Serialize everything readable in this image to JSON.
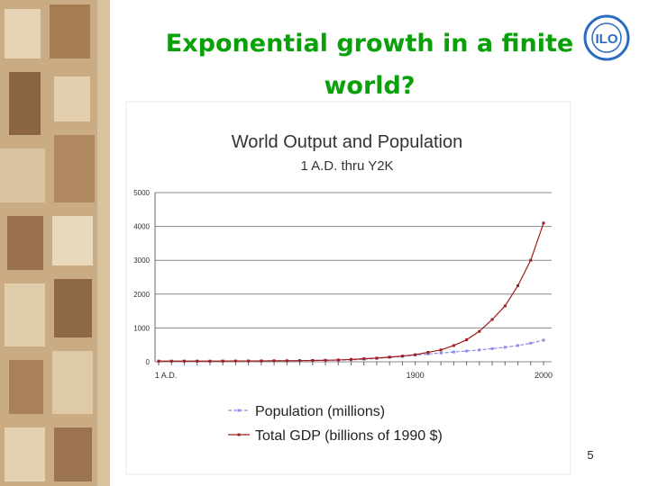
{
  "slide": {
    "title_lines": [
      "Exponential growth in a finite",
      "world?"
    ],
    "page_number": 5
  },
  "chart_data": {
    "type": "line",
    "title": "World Output and Population",
    "subtitle": "1 A.D. thru Y2K",
    "categories": [
      "1 A.D.",
      null,
      null,
      null,
      null,
      null,
      null,
      null,
      null,
      null,
      null,
      null,
      null,
      null,
      null,
      null,
      null,
      null,
      null,
      null,
      "1900",
      null,
      null,
      null,
      null,
      null,
      null,
      null,
      null,
      null,
      "2000"
    ],
    "series": [
      {
        "name": "Population (millions)",
        "color": "#8c8ce6",
        "values": [
          20,
          20,
          20,
          20,
          20,
          25,
          25,
          25,
          30,
          30,
          30,
          35,
          40,
          45,
          50,
          60,
          75,
          100,
          130,
          160,
          200,
          230,
          260,
          290,
          320,
          350,
          390,
          430,
          480,
          550,
          640
        ]
      },
      {
        "name": "Total GDP (billions of 1990 $)",
        "color": "#a01e1e",
        "values": [
          20,
          20,
          20,
          20,
          20,
          20,
          25,
          25,
          25,
          30,
          30,
          35,
          40,
          45,
          55,
          70,
          90,
          110,
          140,
          170,
          210,
          280,
          350,
          480,
          650,
          900,
          1250,
          1650,
          2250,
          3000,
          4100
        ]
      }
    ],
    "ylim": [
      0,
      5000
    ],
    "yticks": [
      0,
      1000,
      2000,
      3000,
      4000,
      5000
    ],
    "grid": true
  }
}
